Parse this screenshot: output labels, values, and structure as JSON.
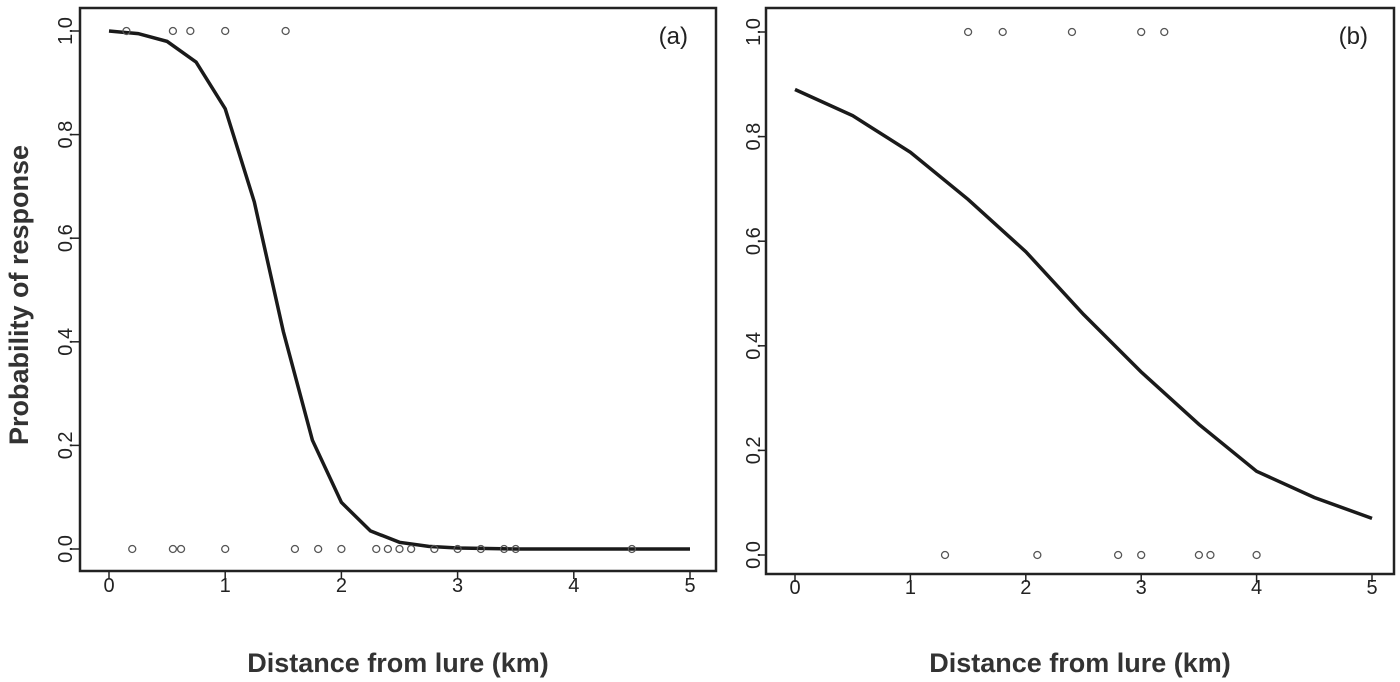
{
  "chart_data": [
    {
      "type": "scatter",
      "panel_label": "(a)",
      "title": "",
      "xlabel": "Distance from lure (km)",
      "ylabel": "Probability of response",
      "xlim": [
        0,
        5
      ],
      "ylim": [
        0,
        1
      ],
      "x_ticks": [
        "0",
        "1",
        "2",
        "3",
        "4",
        "5"
      ],
      "y_ticks": [
        "0.0",
        "0.2",
        "0.4",
        "0.6",
        "0.8",
        "1.0"
      ],
      "points_response_1": [
        0.15,
        0.55,
        0.7,
        1.0,
        1.52
      ],
      "points_response_0": [
        0.2,
        0.55,
        0.62,
        1.0,
        1.6,
        1.8,
        2.0,
        2.3,
        2.4,
        2.5,
        2.6,
        2.8,
        3.0,
        3.2,
        3.4,
        3.5,
        4.5
      ],
      "fitted_curve": {
        "model": "logistic",
        "x": [
          0,
          0.25,
          0.5,
          0.75,
          1.0,
          1.25,
          1.5,
          1.75,
          2.0,
          2.25,
          2.5,
          2.75,
          3.0,
          3.5,
          4.0,
          4.5,
          5.0
        ],
        "y": [
          1.0,
          0.995,
          0.98,
          0.94,
          0.85,
          0.67,
          0.42,
          0.21,
          0.09,
          0.035,
          0.013,
          0.005,
          0.002,
          0.0,
          0.0,
          0.0,
          0.0
        ]
      },
      "grid": false,
      "legend": "none"
    },
    {
      "type": "scatter",
      "panel_label": "(b)",
      "title": "",
      "xlabel": "Distance from lure (km)",
      "ylabel": "",
      "xlim": [
        0,
        5
      ],
      "ylim": [
        0,
        1
      ],
      "x_ticks": [
        "0",
        "1",
        "2",
        "3",
        "4",
        "5"
      ],
      "y_ticks": [
        "0.0",
        "0.2",
        "0.4",
        "0.6",
        "0.8",
        "1.0"
      ],
      "points_response_1": [
        1.5,
        1.8,
        2.4,
        3.0,
        3.2
      ],
      "points_response_0": [
        1.3,
        2.1,
        2.8,
        3.0,
        3.5,
        3.6,
        4.0
      ],
      "fitted_curve": {
        "model": "logistic",
        "x": [
          0,
          0.5,
          1.0,
          1.5,
          2.0,
          2.5,
          3.0,
          3.5,
          4.0,
          4.5,
          5.0
        ],
        "y": [
          0.89,
          0.84,
          0.77,
          0.68,
          0.58,
          0.46,
          0.35,
          0.25,
          0.16,
          0.11,
          0.07
        ]
      },
      "grid": false,
      "legend": "none"
    }
  ]
}
